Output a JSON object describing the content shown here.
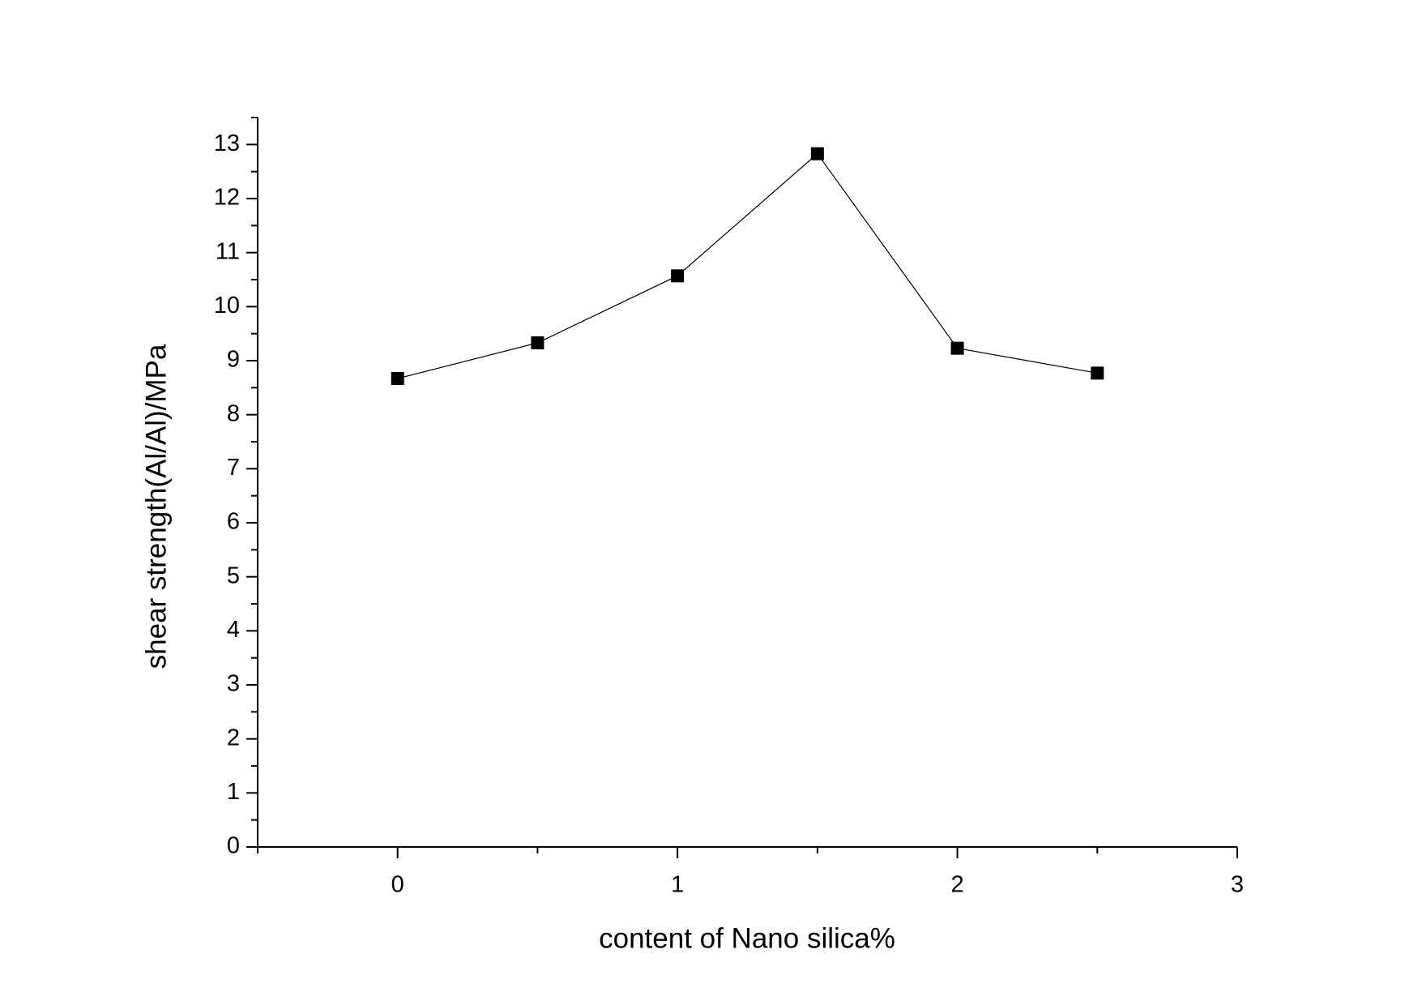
{
  "chart_data": {
    "type": "line",
    "x_label": "content of Nano silica%",
    "y_label": "shear strength(Al/Al)/MPa",
    "x": [
      0,
      0.5,
      1,
      1.5,
      2,
      2.5
    ],
    "series": [
      {
        "color": "#000000",
        "values": [
          8.67,
          9.33,
          10.57,
          12.83,
          9.23,
          8.77
        ]
      }
    ],
    "xlim": [
      -0.5,
      3
    ],
    "xticks": [
      0,
      1,
      2,
      3
    ],
    "ylim": [
      0,
      13.5
    ],
    "yticks": [
      0,
      1,
      2,
      3,
      4,
      5,
      6,
      7,
      8,
      9,
      10,
      11,
      12,
      13
    ],
    "marker": "square",
    "grid": false
  }
}
